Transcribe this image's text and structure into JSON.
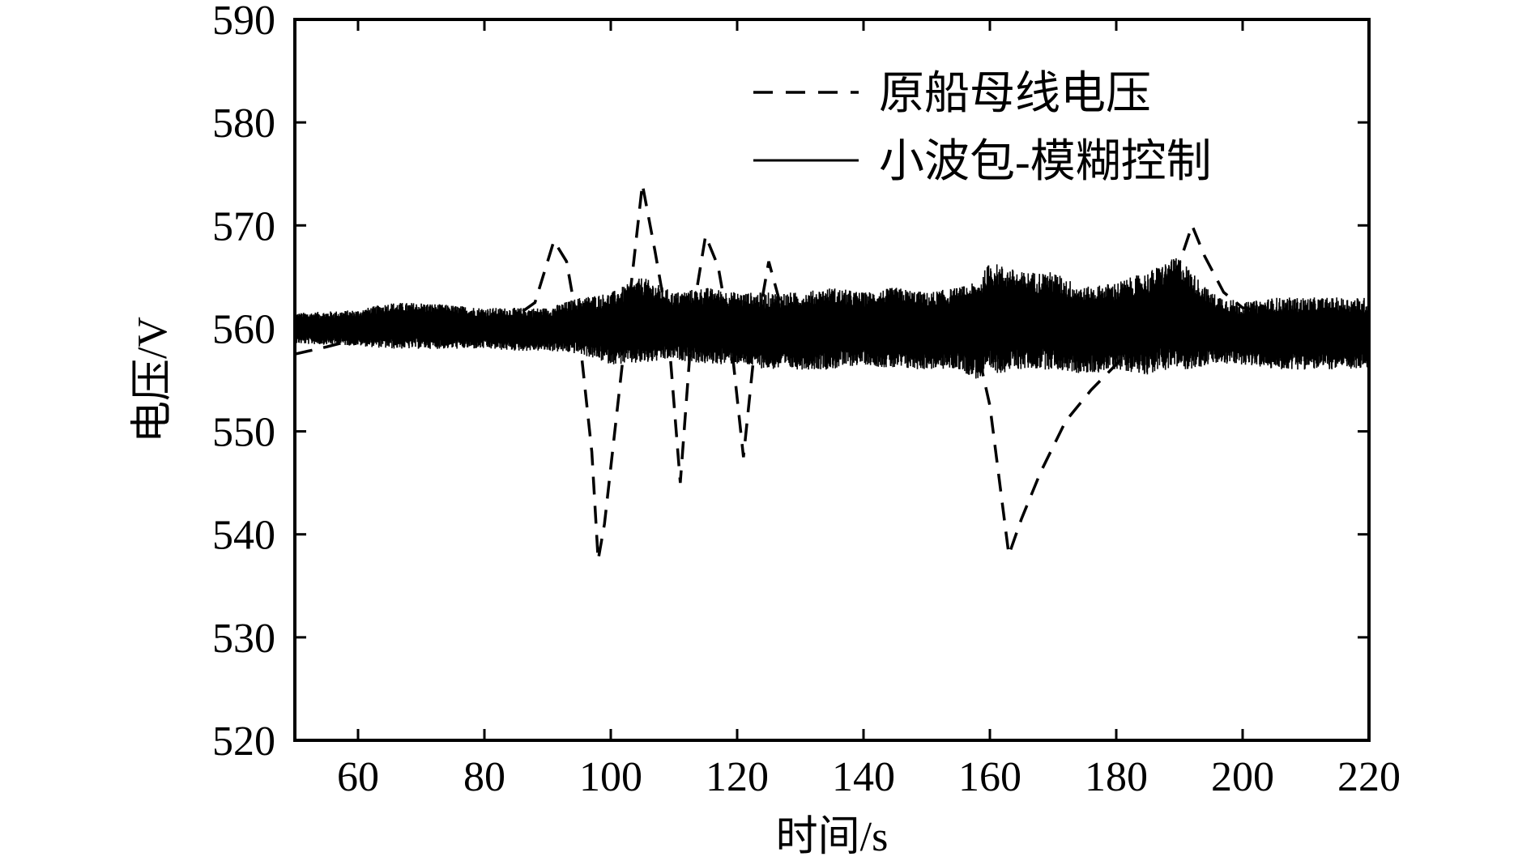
{
  "chart_data": {
    "type": "line",
    "xlabel": "时间/s",
    "ylabel": "电压/V",
    "xlim": [
      50,
      220
    ],
    "ylim": [
      520,
      590
    ],
    "xticks": [
      60,
      80,
      100,
      120,
      140,
      160,
      180,
      200,
      220
    ],
    "yticks": [
      520,
      530,
      540,
      550,
      560,
      570,
      580,
      590
    ],
    "grid": false,
    "legend_position": "top-right",
    "series": [
      {
        "name": "原船母线电压",
        "style": "dashed",
        "color": "#000000",
        "x": [
          50,
          55,
          60,
          65,
          70,
          75,
          80,
          85,
          88,
          91,
          93,
          95,
          97,
          98,
          99,
          101,
          103,
          105,
          107,
          109,
          111,
          113,
          115,
          117,
          119,
          121,
          123,
          125,
          127,
          129,
          131,
          135,
          140,
          145,
          150,
          155,
          158,
          160,
          163,
          165,
          168,
          172,
          176,
          180,
          185,
          189,
          192,
          194,
          197,
          200,
          205,
          210,
          215,
          220
        ],
        "y": [
          557.5,
          558.2,
          559.0,
          559.8,
          560.3,
          560.5,
          561.0,
          561.2,
          562.5,
          568.5,
          566.5,
          559.5,
          548.0,
          537.5,
          541.0,
          552.0,
          563.0,
          574.0,
          567.5,
          560.5,
          545.0,
          561.5,
          569.0,
          566.0,
          559.0,
          547.5,
          559.5,
          566.5,
          562.0,
          560.0,
          560.5,
          561.0,
          561.0,
          561.5,
          561.5,
          561.0,
          558.0,
          552.5,
          538.0,
          541.5,
          546.0,
          551.0,
          554.0,
          556.5,
          560.0,
          564.5,
          570.0,
          567.0,
          563.5,
          562.0,
          561.5,
          561.0,
          560.5,
          560.5
        ]
      },
      {
        "name": "小波包-模糊控制",
        "style": "solid",
        "color": "#000000",
        "envelope": {
          "x": [
            50,
            60,
            65,
            70,
            80,
            85,
            90,
            95,
            100,
            105,
            110,
            115,
            120,
            125,
            130,
            135,
            140,
            145,
            150,
            155,
            158,
            160,
            165,
            170,
            175,
            180,
            185,
            188,
            190,
            192,
            195,
            200,
            205,
            210,
            215,
            220
          ],
          "upper": [
            561.5,
            561.8,
            562.5,
            562.5,
            562.0,
            562.0,
            562.0,
            563.0,
            563.5,
            565.0,
            563.5,
            564.0,
            563.5,
            563.5,
            563.5,
            564.0,
            563.5,
            564.0,
            563.5,
            564.0,
            564.5,
            566.5,
            565.5,
            565.5,
            564.0,
            564.5,
            565.5,
            566.5,
            567.0,
            565.5,
            563.5,
            562.5,
            563.0,
            563.0,
            563.0,
            563.0
          ],
          "lower": [
            558.5,
            558.3,
            558.0,
            558.0,
            558.0,
            557.8,
            557.8,
            557.5,
            556.5,
            556.5,
            557.0,
            556.5,
            556.5,
            556.0,
            556.0,
            556.0,
            556.5,
            556.0,
            556.0,
            556.0,
            555.0,
            555.5,
            556.0,
            556.0,
            555.5,
            556.0,
            555.5,
            556.0,
            556.0,
            556.0,
            556.5,
            556.5,
            556.0,
            556.0,
            556.0,
            556.0
          ]
        }
      }
    ]
  }
}
